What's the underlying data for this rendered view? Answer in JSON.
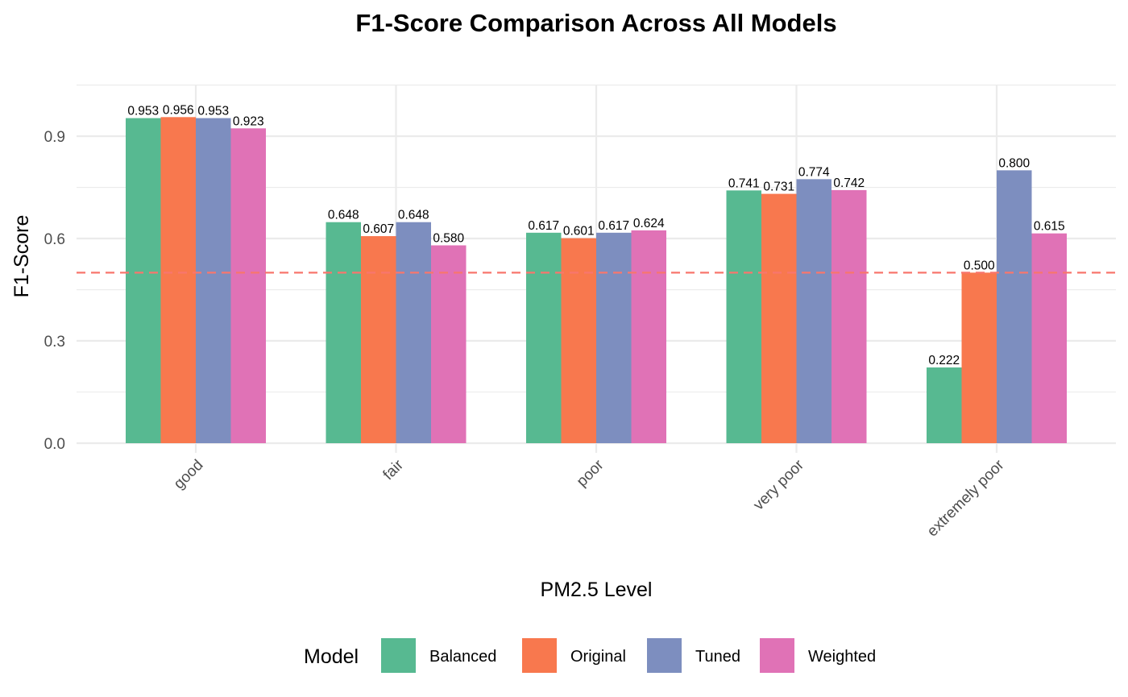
{
  "chart_data": {
    "type": "bar",
    "title": "F1-Score Comparison Across All Models",
    "xlabel": "PM2.5 Level",
    "ylabel": "F1-Score",
    "categories": [
      "good",
      "fair",
      "poor",
      "very poor",
      "extremely poor"
    ],
    "series": [
      {
        "name": "Balanced",
        "color": "#57B991",
        "values": [
          0.953,
          0.648,
          0.617,
          0.741,
          0.222
        ],
        "labels": [
          "0.953",
          "0.648",
          "0.617",
          "0.741",
          "0.222"
        ]
      },
      {
        "name": "Original",
        "color": "#F8784E",
        "values": [
          0.956,
          0.607,
          0.601,
          0.731,
          0.5
        ],
        "labels": [
          "0.956",
          "0.607",
          "0.601",
          "0.731",
          "0.500"
        ]
      },
      {
        "name": "Tuned",
        "color": "#7D8EBF",
        "values": [
          0.953,
          0.648,
          0.617,
          0.774,
          0.8
        ],
        "labels": [
          "0.953",
          "0.648",
          "0.617",
          "0.774",
          "0.800"
        ]
      },
      {
        "name": "Weighted",
        "color": "#E072B6",
        "values": [
          0.923,
          0.58,
          0.624,
          0.742,
          0.615
        ],
        "labels": [
          "0.923",
          "0.580",
          "0.624",
          "0.742",
          "0.615"
        ]
      }
    ],
    "ylim": [
      0,
      1.05
    ],
    "yticks": [
      0.0,
      0.3,
      0.6,
      0.9
    ],
    "ytick_labels": [
      "0.0",
      "0.3",
      "0.6",
      "0.9"
    ],
    "reference_line": {
      "value": 0.5,
      "color": "#F8766D",
      "style": "dashed"
    },
    "grid": true,
    "legend": {
      "title": "Model",
      "placement": "bottom"
    },
    "colors": {
      "grid": "#EBEBEB",
      "axis_text": "#4D4D4D"
    }
  }
}
